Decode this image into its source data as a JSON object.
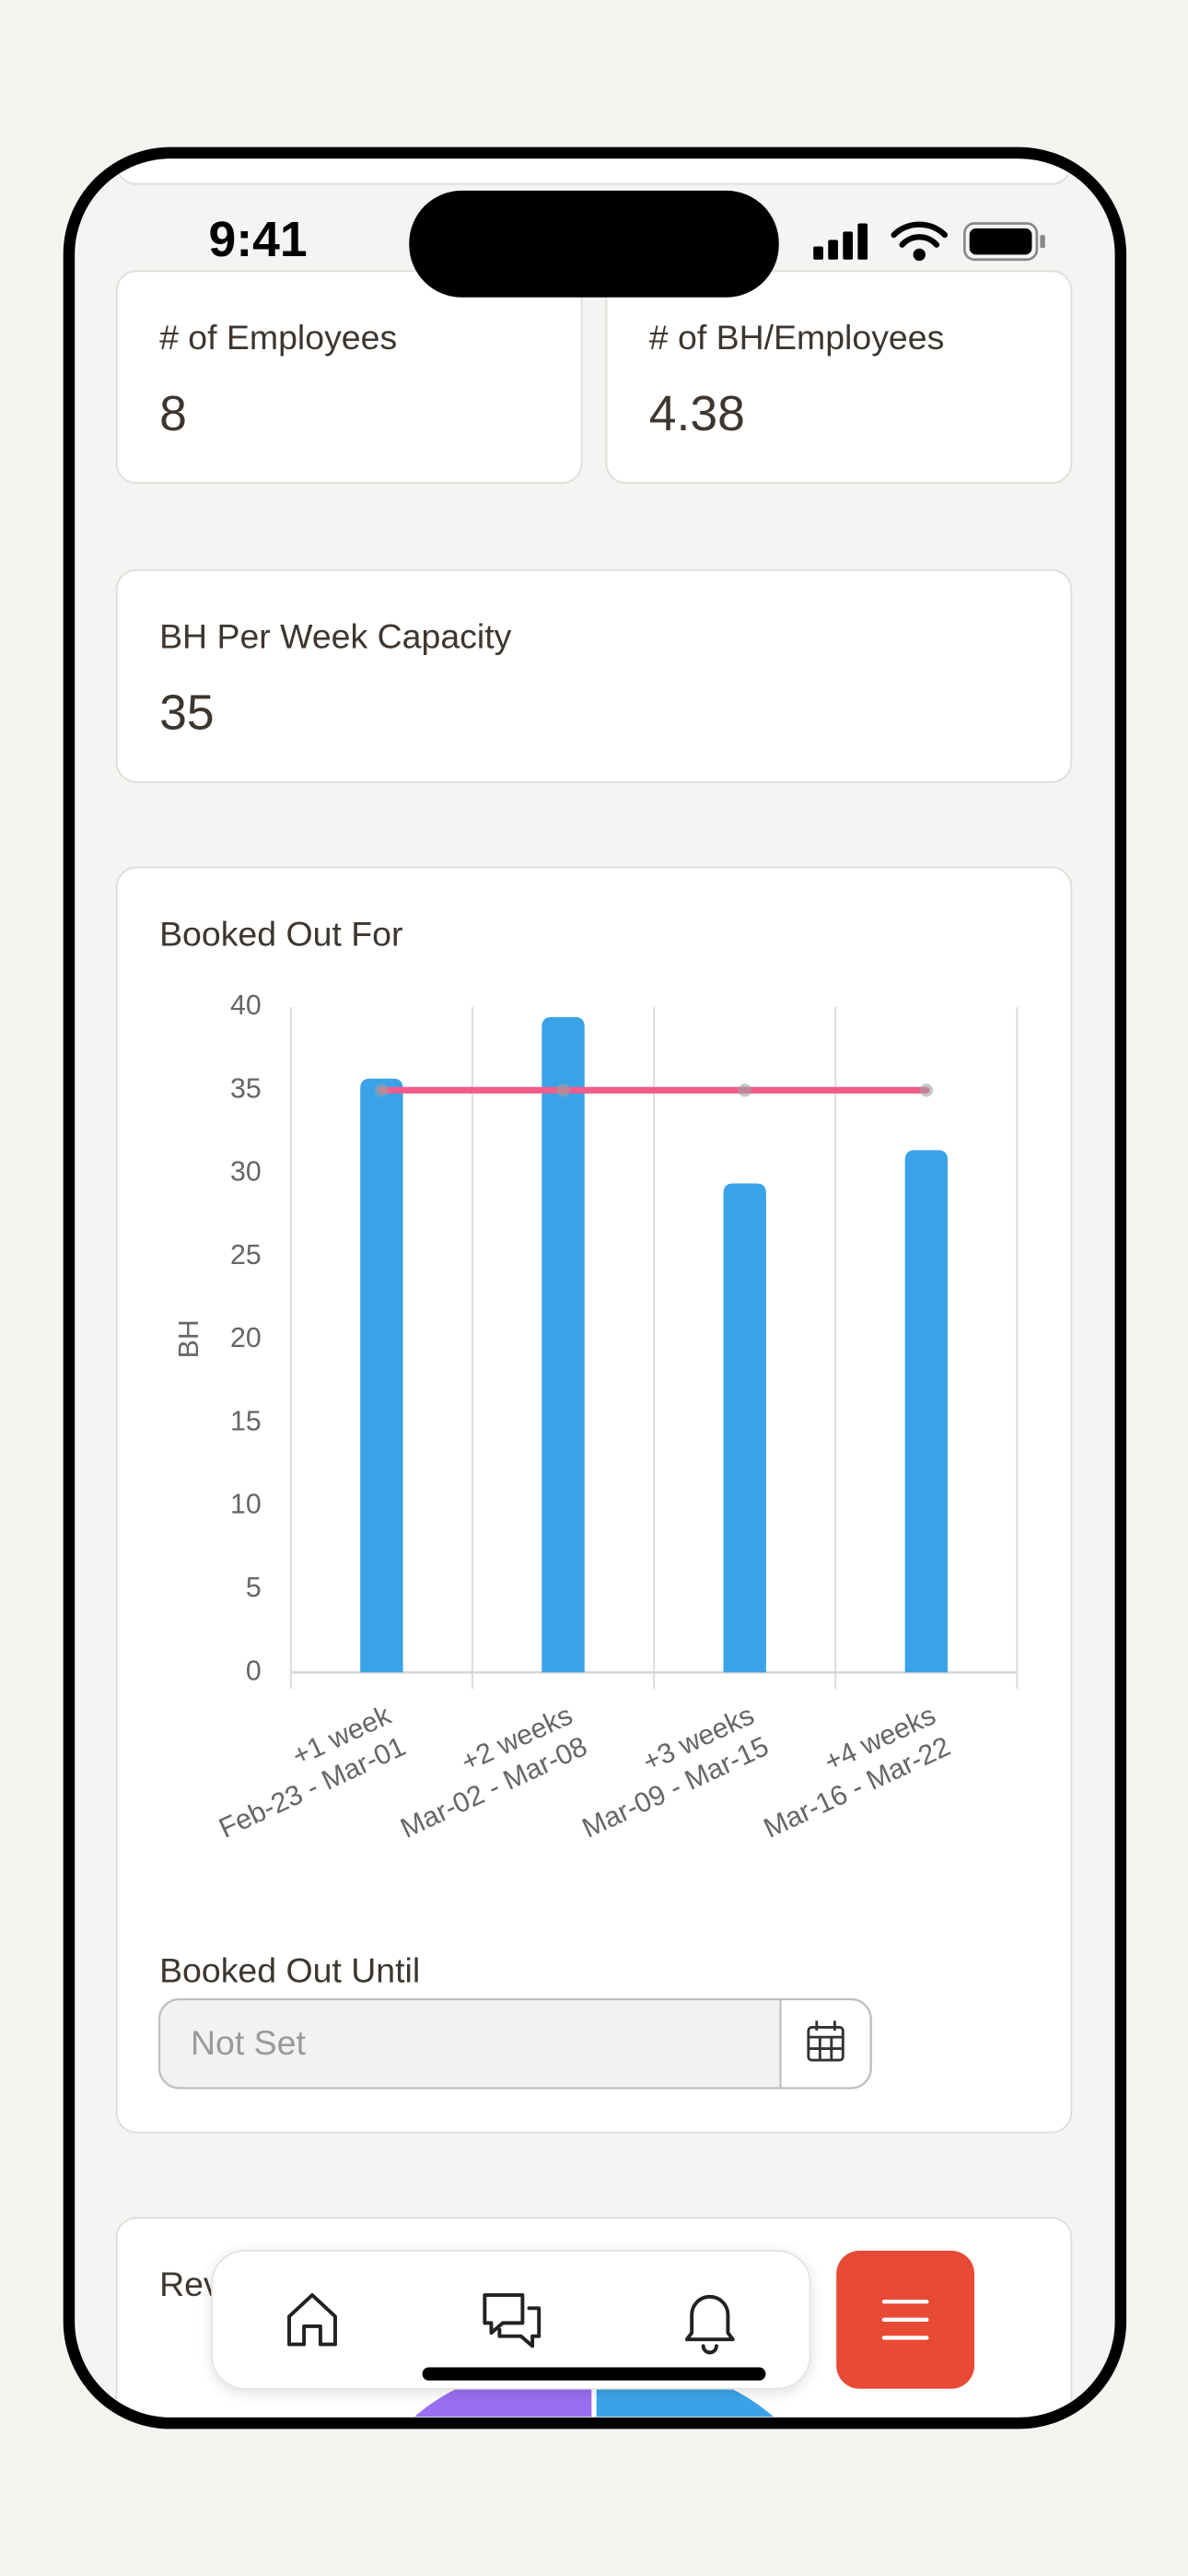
{
  "status_bar": {
    "time": "9:41"
  },
  "stats": [
    {
      "label": "# of Employees",
      "value": "8"
    },
    {
      "label": "# of BH/Employees",
      "value": "4.38"
    },
    {
      "label": "BH Per Week Capacity",
      "value": "35"
    }
  ],
  "chart_card": {
    "title": "Booked Out For"
  },
  "chart_data": {
    "type": "bar",
    "y_label": "BH",
    "categories": [
      [
        "+1 week",
        "Feb-23 - Mar-01"
      ],
      [
        "+2 weeks",
        "Mar-02 - Mar-08"
      ],
      [
        "+3 weeks",
        "Mar-09 - Mar-15"
      ],
      [
        "+4 weeks",
        "Mar-16 - Mar-22"
      ]
    ],
    "series": [
      {
        "type": "bar",
        "color": "#3aa3e8",
        "values": [
          35.7,
          39.4,
          29.4,
          31.4
        ]
      },
      {
        "type": "line",
        "color": "#f25c8a",
        "values": [
          35,
          35,
          35,
          35
        ]
      }
    ],
    "ylim": [
      0,
      40
    ],
    "yticks": [
      0,
      5,
      10,
      15,
      20,
      25,
      30,
      35,
      40
    ],
    "grid": "vertical"
  },
  "booked_until": {
    "label": "Booked Out Until",
    "placeholder": "Not Set"
  },
  "next_card": {
    "title": "Rev"
  }
}
